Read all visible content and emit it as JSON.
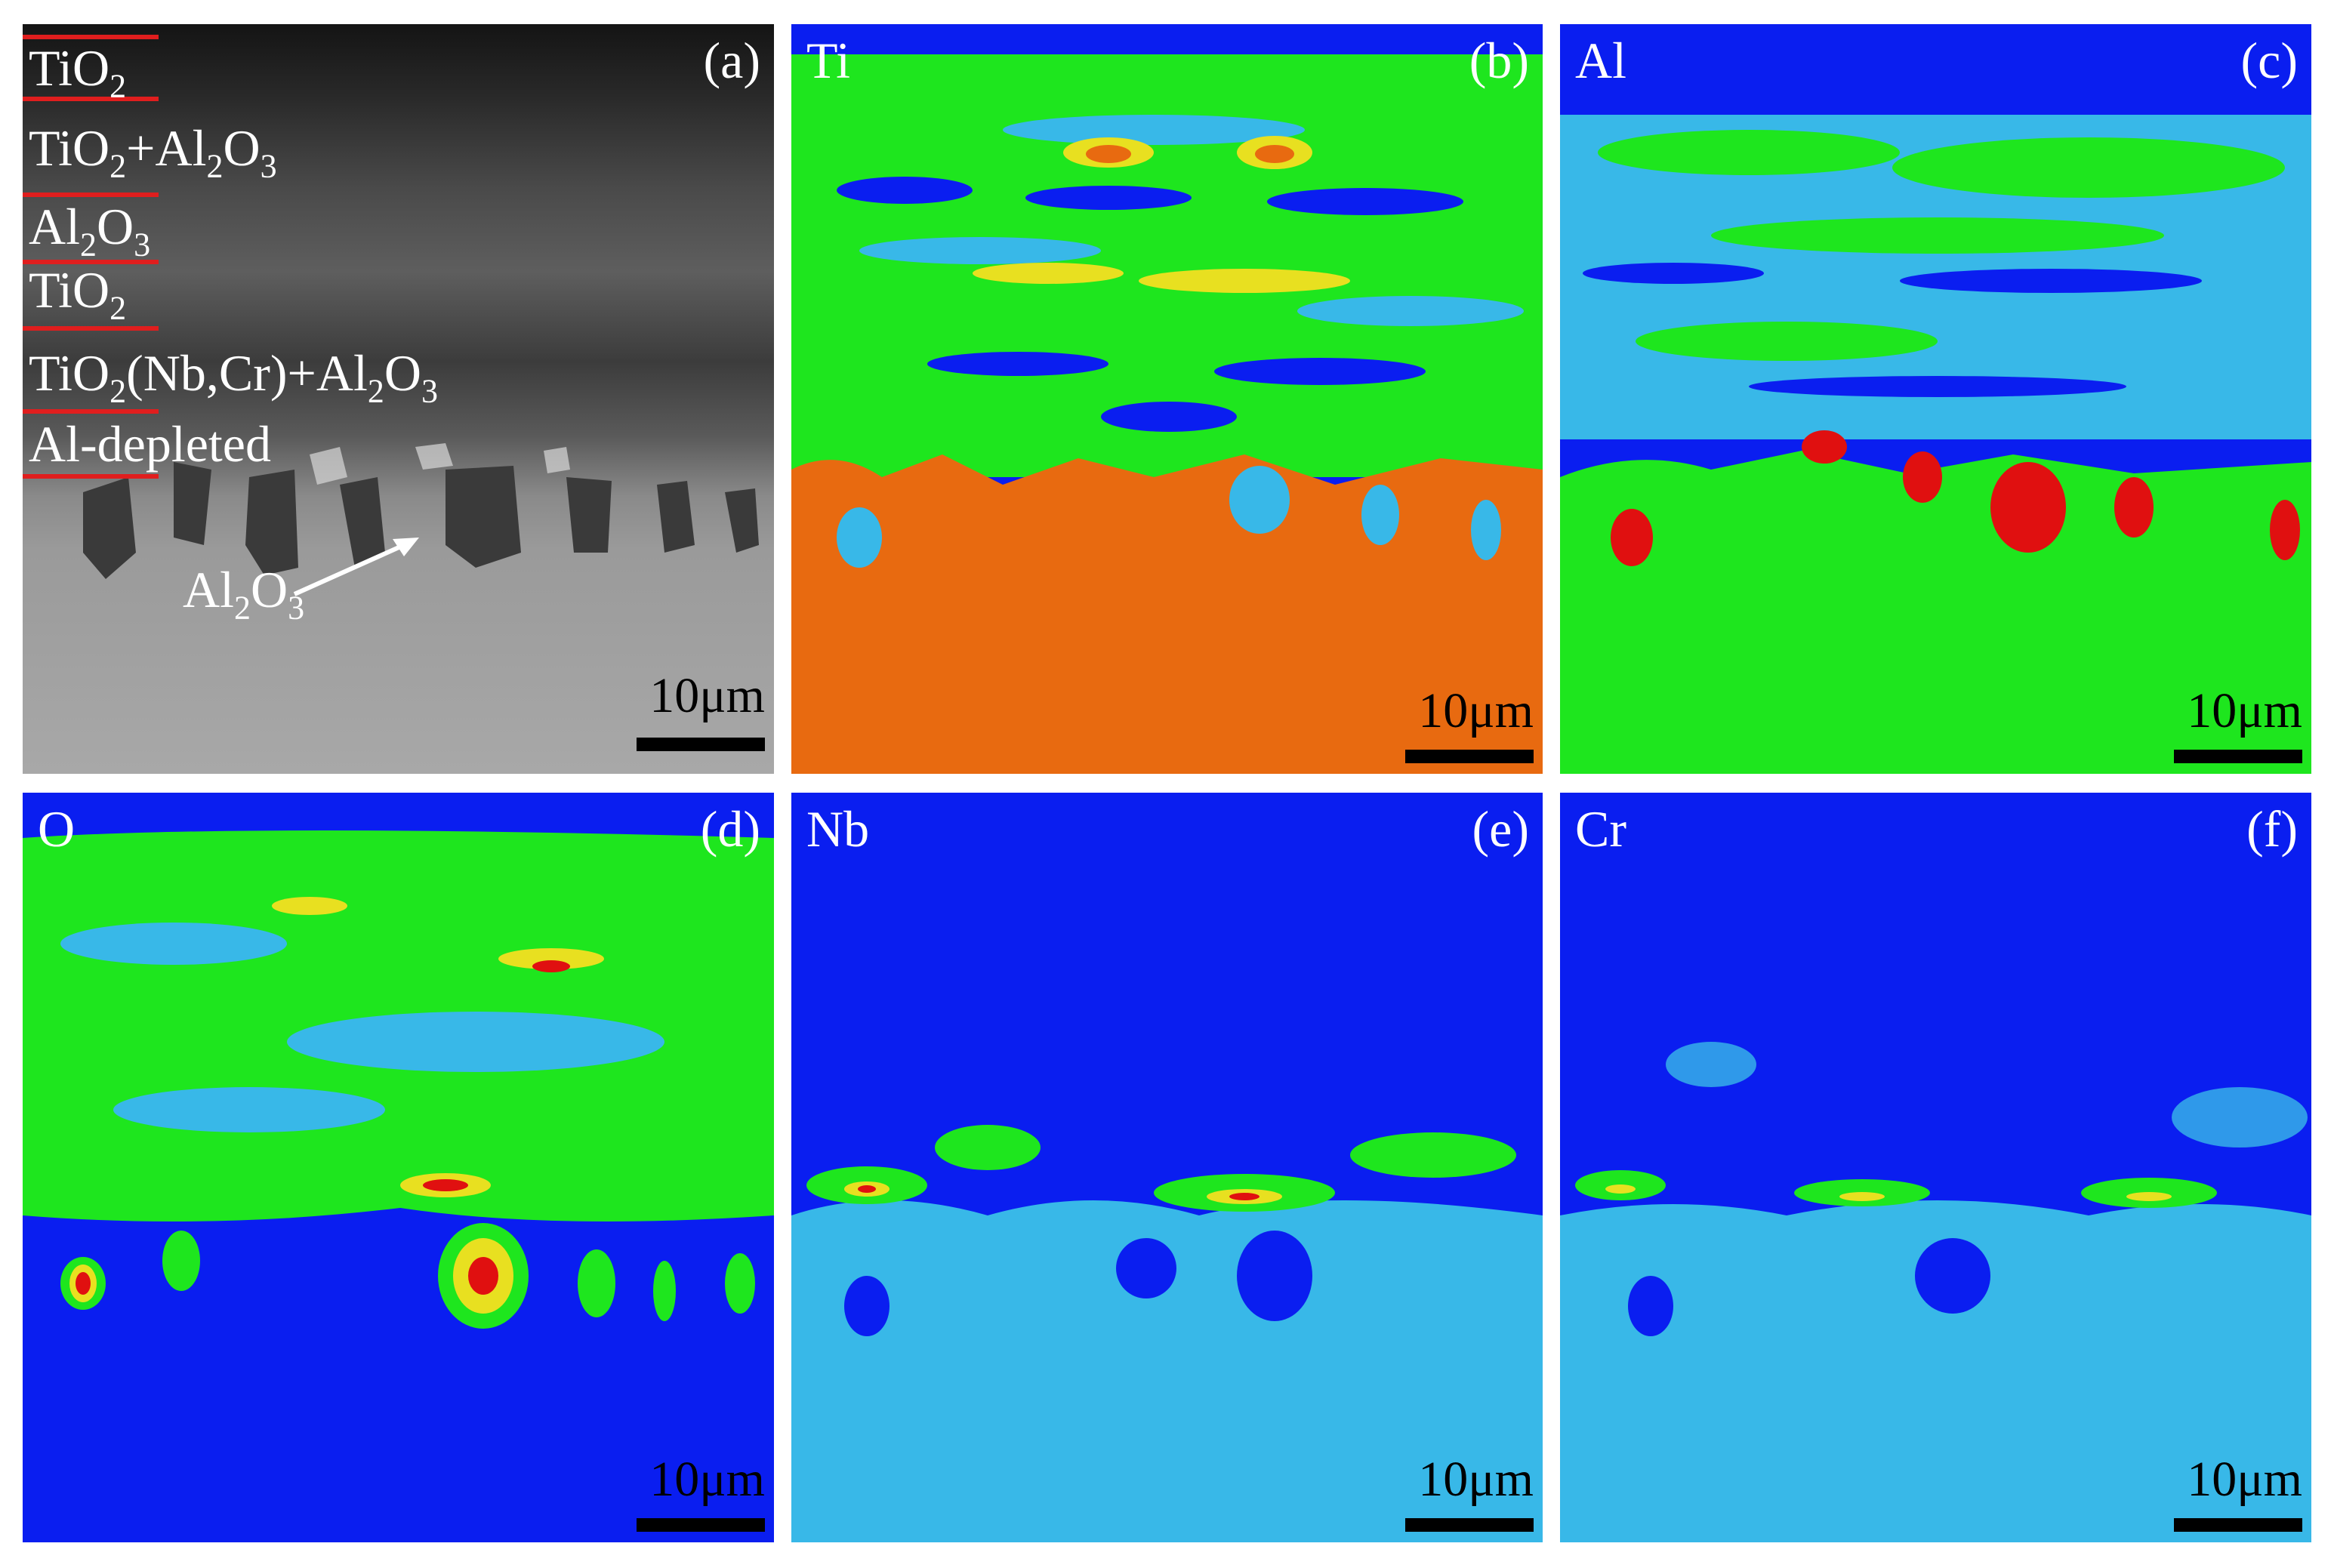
{
  "panels": [
    {
      "id": "a",
      "label": "(a)",
      "scale": "10μm"
    },
    {
      "id": "b",
      "label": "(b)",
      "element": "Ti",
      "scale": "10μm"
    },
    {
      "id": "c",
      "label": "(c)",
      "element": "Al",
      "scale": "10μm"
    },
    {
      "id": "d",
      "label": "(d)",
      "element": "O",
      "scale": "10μm"
    },
    {
      "id": "e",
      "label": "(e)",
      "element": "Nb",
      "scale": "10μm"
    },
    {
      "id": "f",
      "label": "(f)",
      "element": "Cr",
      "scale": "10μm"
    }
  ],
  "layers": {
    "l1": {
      "base": "TiO",
      "sub": "2"
    },
    "l2": {
      "a": "TiO",
      "a_sub": "2",
      "b": "+Al",
      "b_sub": "2",
      "c": "O",
      "c_sub": "3"
    },
    "l3": {
      "a": "Al",
      "a_sub": "2",
      "b": "O",
      "b_sub": "3"
    },
    "l4": {
      "base": "TiO",
      "sub": "2"
    },
    "l5": {
      "a": "TiO",
      "a_sub": "2",
      "b": "(Nb,Cr)+Al",
      "b_sub": "2",
      "c": "O",
      "c_sub": "3"
    },
    "l6": {
      "text": "Al-depleted"
    }
  },
  "arrow_label": {
    "a": "Al",
    "a_sub": "2",
    "b": "O",
    "b_sub": "3"
  },
  "colors": {
    "map_blue": "#0a1ef0",
    "map_cyan": "#38b8e8",
    "map_green": "#1ee61e",
    "map_yellow": "#e8e020",
    "map_orange": "#e86a10",
    "map_red": "#e01010",
    "red_line": "#e01e1e"
  }
}
